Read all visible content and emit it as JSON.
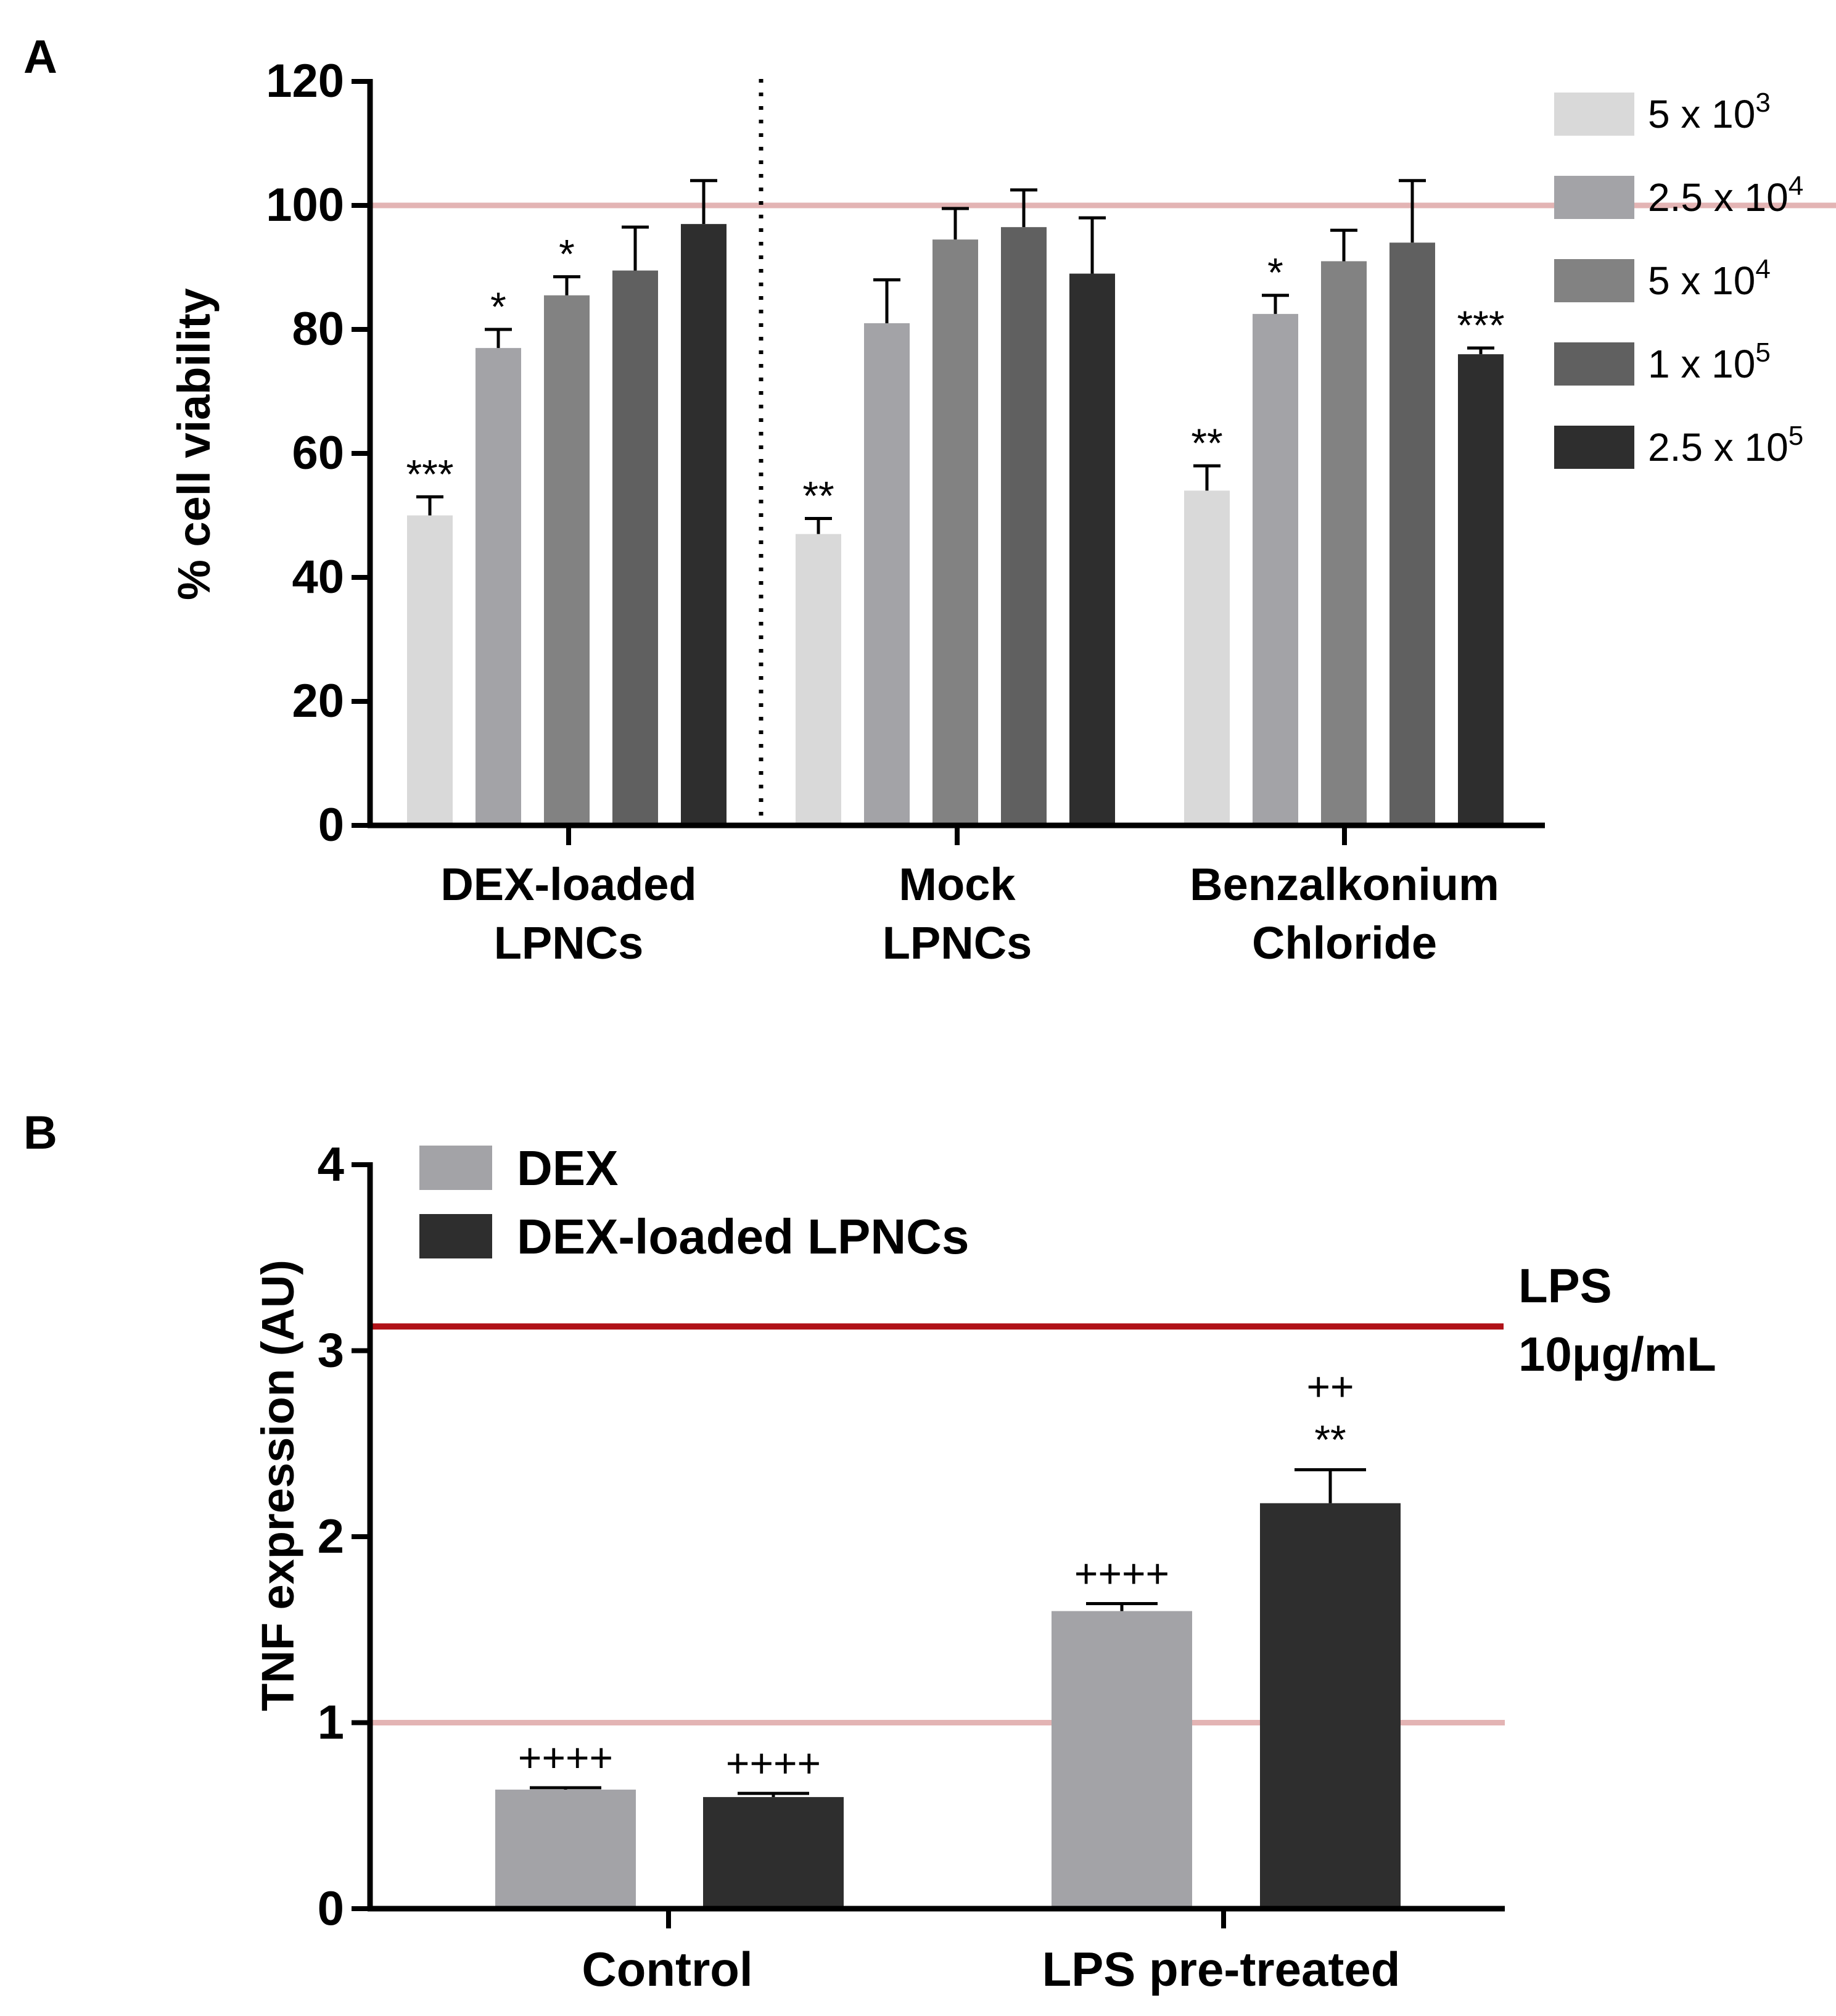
{
  "panel_a_label": "A",
  "panel_b_label": "B",
  "chart_data": [
    {
      "type": "bar",
      "panel": "A",
      "ylabel": "% cell viability",
      "ylim": [
        0,
        120
      ],
      "yticks": [
        "0",
        "20",
        "40",
        "60",
        "80",
        "100",
        "120"
      ],
      "reference_line": 100,
      "reference_color": "#e3b4b4",
      "groups": [
        {
          "label_line1": "DEX-loaded",
          "label_line2": "LPNCs"
        },
        {
          "label_line1": "Mock",
          "label_line2": "LPNCs"
        },
        {
          "label_line1": "Benzalkonium",
          "label_line2": "Chloride"
        }
      ],
      "series": [
        {
          "name": "5 x 10",
          "sup": "3",
          "color": "#d9d9d9",
          "values": [
            50,
            47,
            54
          ],
          "errors": [
            3,
            2.5,
            4
          ],
          "sig": [
            "***",
            "**",
            "**"
          ]
        },
        {
          "name": "2.5 x 10",
          "sup": "4",
          "color": "#a3a3a7",
          "values": [
            77,
            81,
            82.5
          ],
          "errors": [
            3,
            7,
            3
          ],
          "sig": [
            "*",
            "",
            "*"
          ]
        },
        {
          "name": "5 x 10",
          "sup": "4",
          "color": "#828282",
          "values": [
            85.5,
            94.5,
            91
          ],
          "errors": [
            3,
            5,
            5
          ],
          "sig": [
            "*",
            "",
            ""
          ]
        },
        {
          "name": "1 x 10",
          "sup": "5",
          "color": "#606060",
          "values": [
            89.5,
            96.5,
            94
          ],
          "errors": [
            7,
            6,
            10
          ],
          "sig": [
            "",
            "",
            ""
          ]
        },
        {
          "name": "2.5 x 10",
          "sup": "5",
          "color": "#2e2e2e",
          "values": [
            97,
            89,
            76
          ],
          "errors": [
            7,
            9,
            1
          ],
          "sig": [
            "",
            "",
            "***"
          ]
        }
      ]
    },
    {
      "type": "bar",
      "panel": "B",
      "ylabel": "TNF expression  (AU)",
      "ylim": [
        0,
        4
      ],
      "yticks": [
        "0",
        "1",
        "2",
        "3",
        "4"
      ],
      "reference_line": 1,
      "reference_color": "#e3b4b4",
      "lps_line": 3.13,
      "lps_color": "#b01218",
      "lps_label_line1": "LPS",
      "lps_label_line2": "10μg/mL",
      "categories": [
        "Control",
        "LPS pre-treated"
      ],
      "series": [
        {
          "name": "DEX",
          "color": "#a3a3a7",
          "values": [
            0.64,
            1.6
          ],
          "errors": [
            0.01,
            0.04
          ],
          "sig_top": [
            "",
            ""
          ],
          "sig_bottom": [
            "++++",
            "++++"
          ]
        },
        {
          "name": "DEX-loaded LPNCs",
          "color": "#2e2e2e",
          "values": [
            0.6,
            2.18
          ],
          "errors": [
            0.02,
            0.18
          ],
          "sig_top": [
            "",
            "++"
          ],
          "sig_bottom": [
            "++++",
            "**"
          ]
        }
      ]
    }
  ]
}
